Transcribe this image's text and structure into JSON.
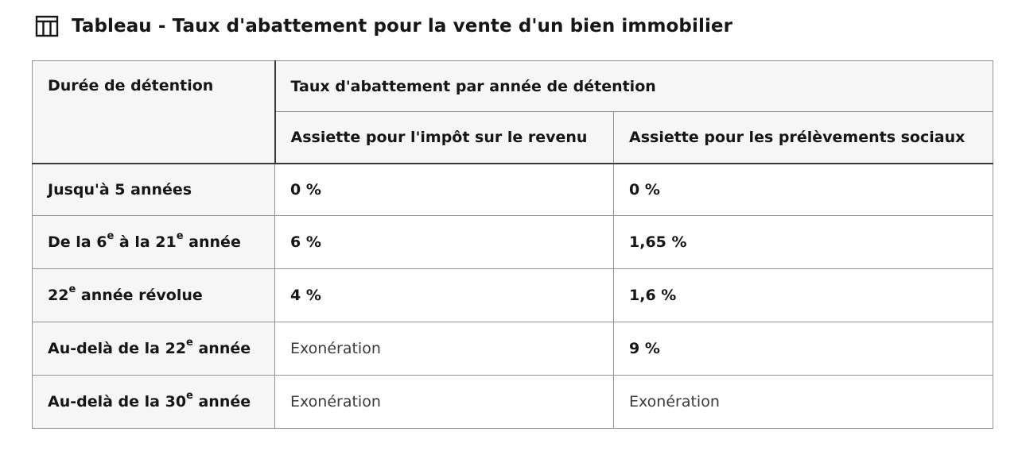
{
  "caption": {
    "icon": "table-icon",
    "title": "Tableau - Taux d'abattement pour la vente d'un bien immobilier"
  },
  "table": {
    "header": {
      "duration": "Durée de détention",
      "group": "Taux d'abattement par année de détention",
      "income_tax": "Assiette pour l'impôt sur le revenu",
      "social": "Assiette pour les prélèvements sociaux"
    },
    "rows": [
      {
        "label_pre": "Jusqu'à 5 années",
        "sup1": "",
        "mid": "",
        "sup2": "",
        "post": "",
        "income_tax": "0 %",
        "social": "0 %"
      },
      {
        "label_pre": "De la 6",
        "sup1": "e",
        "mid": " à la 21",
        "sup2": "e",
        "post": " année",
        "income_tax": "6 %",
        "social": "1,65 %"
      },
      {
        "label_pre": "22",
        "sup1": "e",
        "mid": " année révolue",
        "sup2": "",
        "post": "",
        "income_tax": "4 %",
        "social": "1,6 %"
      },
      {
        "label_pre": "Au-delà de la 22",
        "sup1": "e",
        "mid": " année",
        "sup2": "",
        "post": "",
        "income_tax": "Exonération",
        "social": "9 %"
      },
      {
        "label_pre": "Au-delà de la 30",
        "sup1": "e",
        "mid": " année",
        "sup2": "",
        "post": "",
        "income_tax": "Exonération",
        "social": "Exonération"
      }
    ]
  }
}
